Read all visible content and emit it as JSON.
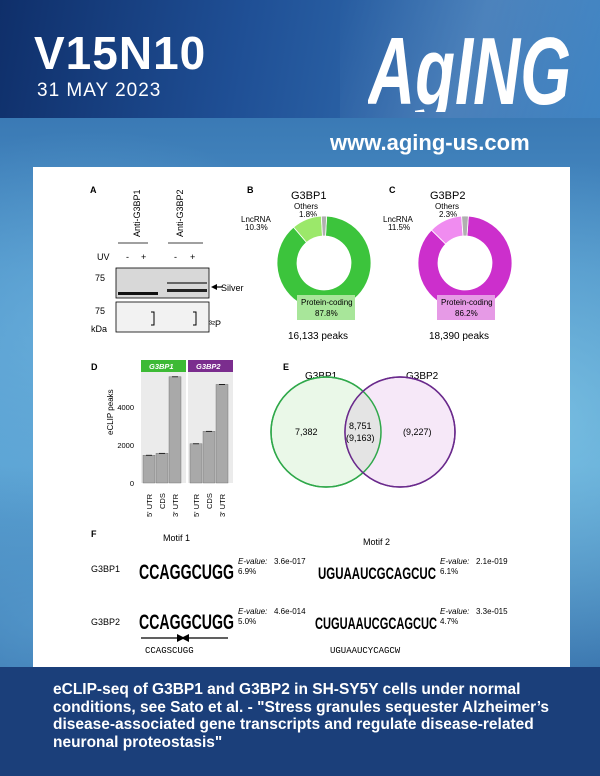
{
  "header": {
    "volume": "V15N10",
    "date": "31 MAY 2023",
    "logo_text": "AgING",
    "url": "www.aging-us.com"
  },
  "figure": {
    "panel_a": {
      "letter": "A",
      "col1": "Anti-G3BP1",
      "col2": "Anti-G3BP2",
      "uv": "UV",
      "minus": "-",
      "plus": "+",
      "mw75a": "75",
      "mw75b": "75",
      "kda": "kDa",
      "silver": "Silver",
      "p32": "³²P"
    },
    "panel_b": {
      "letter": "B",
      "title": "G3BP1",
      "others_label": "Others",
      "others_pct": "1.8%",
      "lnc_label": "LncRNA",
      "lnc_pct": "10.3%",
      "pc_label": "Protein-coding",
      "pc_pct": "87.8%",
      "peaks": "16,133 peaks",
      "color_main": "#3cc43c",
      "color_lnc": "#9be86a",
      "color_other": "#b0b0b0",
      "values": [
        87.8,
        10.3,
        1.8
      ]
    },
    "panel_c": {
      "letter": "C",
      "title": "G3BP2",
      "others_label": "Others",
      "others_pct": "2.3%",
      "lnc_label": "LncRNA",
      "lnc_pct": "11.5%",
      "pc_label": "Protein-coding",
      "pc_pct": "86.2%",
      "peaks": "18,390 peaks",
      "color_main": "#cc2fcc",
      "color_lnc": "#f08cf0",
      "color_other": "#b0b0b0",
      "values": [
        86.2,
        11.5,
        2.3
      ]
    },
    "panel_d": {
      "letter": "D",
      "ylabel": "eCLIP peaks",
      "group1": "G3BP1",
      "group2": "G3BP2",
      "ticks": [
        "0",
        "2000",
        "4000"
      ],
      "cats": [
        "5' UTR",
        "CDS",
        "3' UTR"
      ],
      "values_g1": [
        1450,
        1550,
        5550
      ],
      "values_g2": [
        2050,
        2700,
        5150
      ],
      "ylim": [
        0,
        5800
      ]
    },
    "panel_e": {
      "letter": "E",
      "left_title": "G3BP1",
      "right_title": "G3BP2",
      "left_only": "7,382",
      "overlap": "8,751",
      "overlap_paren": "(9,163)",
      "right_only": "(9,227)"
    },
    "panel_f": {
      "letter": "F",
      "motif1_title": "Motif 1",
      "motif2_title": "Motif 2",
      "row1": "G3BP1",
      "row2": "G3BP2",
      "m1_seq_r1": "CCAGGCUGG",
      "m1_seq_r2": "CCAGGCUGG",
      "m2_seq_r1": "UGUAAUCGCAGCUC",
      "m2_seq_r2": "CUGUAAUCGCAGCUC",
      "m1_r1_eval": "3.6e-017",
      "m1_r1_pct": "6.9%",
      "m1_r2_eval": "4.6e-014",
      "m1_r2_pct": "5.0%",
      "m2_r1_eval": "2.1e-019",
      "m2_r1_pct": "6.1%",
      "m2_r2_eval": "3.3e-015",
      "m2_r2_pct": "4.7%",
      "evalue_label": "E-value:",
      "consensus1": "CCAGSCUGG",
      "consensus2": "UGUAAUCYCAGCW"
    }
  },
  "caption": "eCLIP-seq of G3BP1 and G3BP2 in SH-SY5Y cells under normal conditions, see  Sato et al. - \"Stress granules sequester Alzheimer’s disease-associated gene transcripts and regulate disease-related neuronal proteostasis\""
}
